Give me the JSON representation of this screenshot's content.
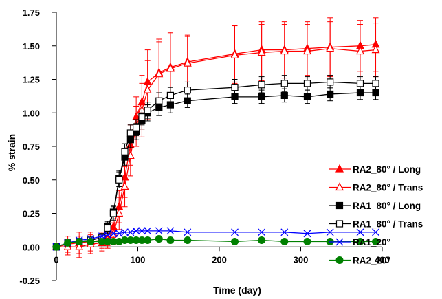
{
  "chart_data": {
    "type": "line",
    "title": "",
    "xlabel": "Time (day)",
    "ylabel": "% strain",
    "xlim": [
      0,
      400
    ],
    "ylim": [
      -0.25,
      1.75
    ],
    "xticks": [
      0,
      100,
      200,
      300,
      400
    ],
    "yticks": [
      -0.25,
      0.0,
      0.25,
      0.5,
      0.75,
      1.0,
      1.25,
      1.5,
      1.75
    ],
    "grid": false,
    "legend_position": "right",
    "series": [
      {
        "name": "RA2_80° / Long",
        "color": "#ff0000",
        "marker": "filled-triangle",
        "x": [
          0,
          14,
          28,
          42,
          56,
          63,
          70,
          77,
          84,
          91,
          98,
          105,
          112,
          126,
          140,
          161,
          219,
          252,
          280,
          308,
          336,
          373,
          392
        ],
        "y": [
          0.0,
          0.02,
          0.03,
          0.04,
          0.05,
          0.07,
          0.15,
          0.3,
          0.52,
          0.76,
          0.97,
          1.08,
          1.23,
          1.3,
          1.34,
          1.38,
          1.44,
          1.47,
          1.47,
          1.48,
          1.49,
          1.5,
          1.51
        ],
        "yerr": [
          0.0,
          0.06,
          0.08,
          0.07,
          0.06,
          0.06,
          0.08,
          0.12,
          0.15,
          0.15,
          0.15,
          0.2,
          0.24,
          0.25,
          0.26,
          0.2,
          0.21,
          0.21,
          0.21,
          0.2,
          0.22,
          0.19,
          0.2
        ]
      },
      {
        "name": "RA2_80° / Trans",
        "color": "#ff0000",
        "marker": "open-triangle",
        "x": [
          0,
          14,
          28,
          42,
          56,
          63,
          70,
          77,
          84,
          91,
          98,
          105,
          112,
          126,
          140,
          161,
          219,
          252,
          280,
          308,
          336,
          373,
          392
        ],
        "y": [
          0.0,
          0.0,
          0.0,
          0.02,
          0.03,
          0.05,
          0.1,
          0.25,
          0.45,
          0.68,
          0.9,
          1.02,
          1.17,
          1.29,
          1.33,
          1.37,
          1.43,
          1.45,
          1.46,
          1.46,
          1.48,
          1.46,
          1.47
        ],
        "yerr": [
          0.0,
          0.06,
          0.08,
          0.07,
          0.06,
          0.06,
          0.08,
          0.12,
          0.15,
          0.15,
          0.15,
          0.2,
          0.22,
          0.24,
          0.26,
          0.2,
          0.21,
          0.21,
          0.2,
          0.2,
          0.2,
          0.2,
          0.2
        ]
      },
      {
        "name": "RA1_80° / Long",
        "color": "#000000",
        "marker": "filled-square",
        "x": [
          0,
          14,
          28,
          42,
          56,
          63,
          70,
          77,
          84,
          91,
          98,
          105,
          112,
          126,
          140,
          161,
          219,
          252,
          280,
          308,
          336,
          373,
          392
        ],
        "y": [
          0.0,
          0.03,
          0.04,
          0.05,
          0.07,
          0.15,
          0.26,
          0.51,
          0.67,
          0.8,
          0.86,
          0.94,
          1.0,
          1.04,
          1.06,
          1.09,
          1.12,
          1.12,
          1.13,
          1.12,
          1.14,
          1.15,
          1.15
        ],
        "yerr": [
          0.0,
          0.02,
          0.02,
          0.02,
          0.03,
          0.04,
          0.05,
          0.06,
          0.06,
          0.06,
          0.06,
          0.06,
          0.06,
          0.06,
          0.06,
          0.05,
          0.05,
          0.05,
          0.05,
          0.05,
          0.05,
          0.05,
          0.05
        ]
      },
      {
        "name": "RA1_80° / Trans",
        "color": "#000000",
        "marker": "open-square",
        "x": [
          0,
          14,
          28,
          42,
          56,
          63,
          70,
          77,
          84,
          91,
          98,
          105,
          112,
          126,
          140,
          161,
          219,
          252,
          280,
          308,
          336,
          373,
          392
        ],
        "y": [
          0.0,
          0.03,
          0.04,
          0.05,
          0.07,
          0.14,
          0.25,
          0.5,
          0.71,
          0.85,
          0.89,
          0.97,
          1.02,
          1.09,
          1.13,
          1.17,
          1.19,
          1.21,
          1.22,
          1.22,
          1.23,
          1.22,
          1.22
        ],
        "yerr": [
          0.0,
          0.02,
          0.02,
          0.02,
          0.03,
          0.04,
          0.05,
          0.06,
          0.06,
          0.06,
          0.06,
          0.06,
          0.06,
          0.06,
          0.06,
          0.06,
          0.06,
          0.06,
          0.06,
          0.05,
          0.05,
          0.05,
          0.05
        ]
      },
      {
        "name": "RA1_20°",
        "color": "#0000ff",
        "marker": "x",
        "x": [
          0,
          14,
          28,
          42,
          56,
          63,
          70,
          77,
          84,
          91,
          98,
          105,
          112,
          126,
          140,
          161,
          219,
          252,
          280,
          308,
          336,
          373,
          392
        ],
        "y": [
          0.0,
          0.03,
          0.05,
          0.06,
          0.08,
          0.09,
          0.1,
          0.1,
          0.11,
          0.11,
          0.12,
          0.12,
          0.12,
          0.12,
          0.12,
          0.11,
          0.11,
          0.11,
          0.11,
          0.1,
          0.11,
          0.11,
          0.11
        ],
        "yerr": []
      },
      {
        "name": "RA2_20°",
        "color": "#008000",
        "marker": "filled-circle",
        "x": [
          0,
          14,
          28,
          42,
          56,
          63,
          70,
          77,
          84,
          91,
          98,
          105,
          112,
          126,
          140,
          161,
          219,
          252,
          280,
          308,
          336,
          373,
          392
        ],
        "y": [
          0.0,
          0.03,
          0.04,
          0.04,
          0.04,
          0.04,
          0.04,
          0.04,
          0.05,
          0.05,
          0.05,
          0.05,
          0.05,
          0.06,
          0.05,
          0.05,
          0.04,
          0.05,
          0.04,
          0.04,
          0.04,
          0.04,
          0.04
        ],
        "yerr": []
      }
    ]
  }
}
